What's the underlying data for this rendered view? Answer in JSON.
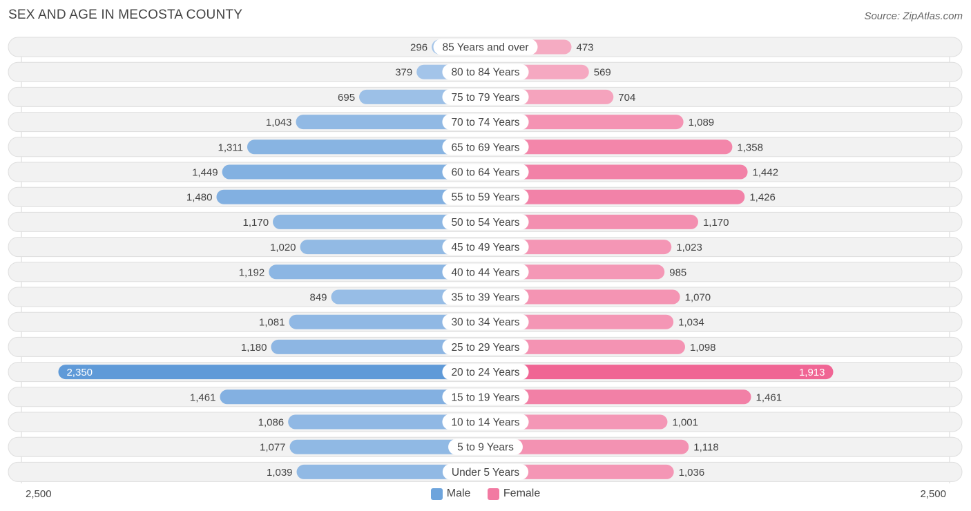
{
  "header": {
    "title": "SEX AND AGE IN MECOSTA COUNTY",
    "source": "Source: ZipAtlas.com"
  },
  "axis": {
    "left_label": "2,500",
    "right_label": "2,500"
  },
  "legend": {
    "male_label": "Male",
    "female_label": "Female"
  },
  "colors": {
    "male_light": "#a9c8ea",
    "male_dark": "#5f9ad8",
    "female_light": "#f6b3c8",
    "female_dark": "#f06594",
    "row_bg": "#f2f2f2",
    "row_border": "#dedede"
  },
  "chart_data": {
    "type": "bar",
    "orientation": "horizontal-diverging",
    "xlim": [
      -2500,
      2500
    ],
    "categories": [
      "85 Years and over",
      "80 to 84 Years",
      "75 to 79 Years",
      "70 to 74 Years",
      "65 to 69 Years",
      "60 to 64 Years",
      "55 to 59 Years",
      "50 to 54 Years",
      "45 to 49 Years",
      "40 to 44 Years",
      "35 to 39 Years",
      "30 to 34 Years",
      "25 to 29 Years",
      "20 to 24 Years",
      "15 to 19 Years",
      "10 to 14 Years",
      "5 to 9 Years",
      "Under 5 Years"
    ],
    "series": [
      {
        "name": "Male",
        "values": [
          296,
          379,
          695,
          1043,
          1311,
          1449,
          1480,
          1170,
          1020,
          1192,
          849,
          1081,
          1180,
          2350,
          1461,
          1086,
          1077,
          1039
        ],
        "labels": [
          "296",
          "379",
          "695",
          "1,043",
          "1,311",
          "1,449",
          "1,480",
          "1,170",
          "1,020",
          "1,192",
          "849",
          "1,081",
          "1,180",
          "2,350",
          "1,461",
          "1,086",
          "1,077",
          "1,039"
        ]
      },
      {
        "name": "Female",
        "values": [
          473,
          569,
          704,
          1089,
          1358,
          1442,
          1426,
          1170,
          1023,
          985,
          1070,
          1034,
          1098,
          1913,
          1461,
          1001,
          1118,
          1036
        ],
        "labels": [
          "473",
          "569",
          "704",
          "1,089",
          "1,358",
          "1,442",
          "1,426",
          "1,170",
          "1,023",
          "985",
          "1,070",
          "1,034",
          "1,098",
          "1,913",
          "1,461",
          "1,001",
          "1,118",
          "1,036"
        ]
      }
    ]
  }
}
